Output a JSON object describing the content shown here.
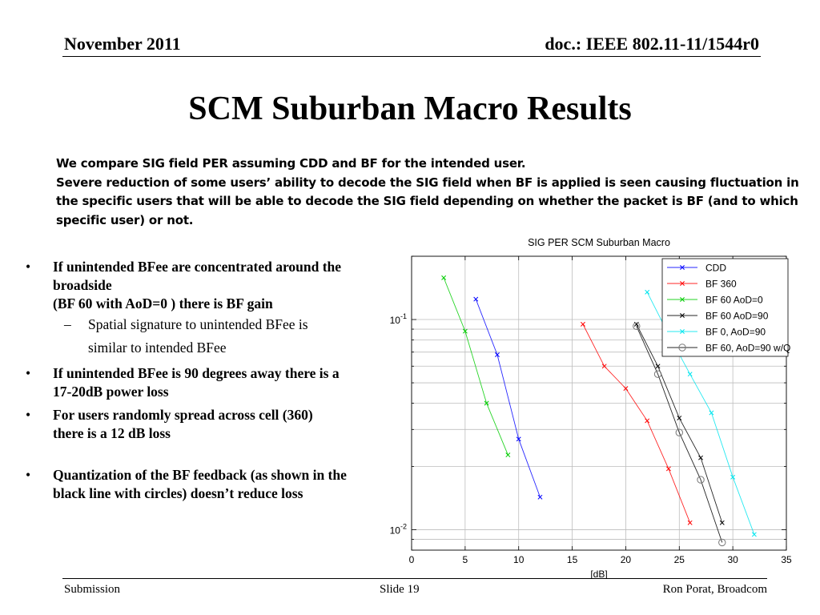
{
  "header": {
    "date": "November 2011",
    "doc": "doc.: IEEE 802.11-11/1544r0"
  },
  "title": "SCM Suburban Macro Results",
  "intro": [
    "We compare SIG field PER assuming CDD and BF for the intended user.",
    "Severe reduction of some users’ ability to decode the SIG field when BF is applied is seen causing fluctuation in",
    "the specific users that will be able to decode the SIG field depending on whether the packet is BF (and to which",
    "specific user) or not."
  ],
  "bullets": [
    {
      "lines": [
        "If unintended BFee are concentrated around the",
        "broadside",
        "(BF 60 with AoD=0 ) there is BF gain"
      ],
      "sub": [
        "Spatial signature to unintended BFee is",
        "similar to intended BFee"
      ]
    },
    {
      "lines": [
        "If unintended BFee is 90 degrees away there is a",
        "17-20dB power loss"
      ]
    },
    {
      "lines": [
        "For users randomly spread across cell (360)",
        "there is a 12 dB loss"
      ]
    },
    {
      "lines": [
        "Quantization of the BF feedback (as shown in the",
        "black line with circles) doesn’t reduce loss"
      ]
    }
  ],
  "footer": {
    "left": "Submission",
    "center": "Slide 19",
    "right": "Ron Porat, Broadcom"
  },
  "chart_data": {
    "type": "line",
    "title": "SIG PER SCM Suburban Macro",
    "xlabel": "[dB]",
    "ylabel": "",
    "xlim": [
      0,
      35
    ],
    "ylim": [
      0.008,
      0.2
    ],
    "yscale": "log",
    "xticks": [
      0,
      5,
      10,
      15,
      20,
      25,
      30,
      35
    ],
    "ytick_labels": [
      {
        "value": 0.1,
        "base": "10",
        "exp": "-1"
      },
      {
        "value": 0.01,
        "base": "10",
        "exp": "-2"
      }
    ],
    "grid": true,
    "legend_position": "top-right",
    "series": [
      {
        "name": "CDD",
        "color": "#0000ff",
        "marker": "x",
        "points": [
          [
            6,
            0.125
          ],
          [
            8,
            0.068
          ],
          [
            10,
            0.027
          ],
          [
            12,
            0.0143
          ]
        ]
      },
      {
        "name": "BF 360",
        "color": "#ff0000",
        "marker": "x",
        "points": [
          [
            16,
            0.095
          ],
          [
            18,
            0.06
          ],
          [
            20,
            0.047
          ],
          [
            22,
            0.033
          ],
          [
            24,
            0.0195
          ],
          [
            26,
            0.0108
          ]
        ]
      },
      {
        "name": "BF 60 AoD=0",
        "color": "#00cc00",
        "marker": "x",
        "points": [
          [
            3,
            0.158
          ],
          [
            5,
            0.088
          ],
          [
            7,
            0.04
          ],
          [
            9,
            0.0227
          ]
        ]
      },
      {
        "name": "BF 60 AoD=90",
        "color": "#000000",
        "marker": "x",
        "points": [
          [
            21,
            0.095
          ],
          [
            23,
            0.06
          ],
          [
            25,
            0.034
          ],
          [
            27,
            0.022
          ],
          [
            29,
            0.0108
          ]
        ]
      },
      {
        "name": "BF 0, AoD=90",
        "color": "#00e5ee",
        "marker": "x",
        "points": [
          [
            22,
            0.135
          ],
          [
            24,
            0.085
          ],
          [
            26,
            0.055
          ],
          [
            28,
            0.036
          ],
          [
            30,
            0.0178
          ],
          [
            32,
            0.0095
          ]
        ]
      },
      {
        "name": "BF 60, AoD=90 w/Q",
        "color": "#000000",
        "marker": "o",
        "points": [
          [
            21,
            0.093
          ],
          [
            23,
            0.055
          ],
          [
            25,
            0.029
          ],
          [
            27,
            0.0173
          ],
          [
            29,
            0.0087
          ]
        ]
      }
    ]
  }
}
